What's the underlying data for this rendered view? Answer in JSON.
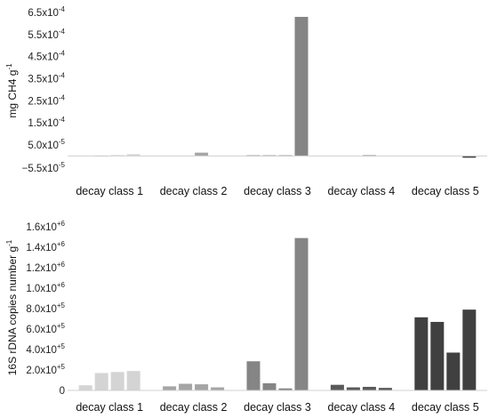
{
  "chart_data": [
    {
      "type": "bar",
      "ylabel": "mg CH4 g",
      "ylabel_sup": "-1",
      "categories": [
        "decay class 1",
        "decay class 2",
        "decay class 3",
        "decay class 4",
        "decay class 5"
      ],
      "yticks": [
        {
          "value": -5.5e-05,
          "mant": "−5.5x10",
          "exp": "-5"
        },
        {
          "value": 5e-05,
          "mant": "5.0x10",
          "exp": "-5"
        },
        {
          "value": 0.00015,
          "mant": "1.5x10",
          "exp": "-4"
        },
        {
          "value": 0.00025,
          "mant": "2.5x10",
          "exp": "-4"
        },
        {
          "value": 0.00035,
          "mant": "3.5x10",
          "exp": "-4"
        },
        {
          "value": 0.00045,
          "mant": "4.5x10",
          "exp": "-4"
        },
        {
          "value": 0.00055,
          "mant": "5.5x10",
          "exp": "-4"
        },
        {
          "value": 0.00065,
          "mant": "6.5x10",
          "exp": "-4"
        }
      ],
      "ylim": [
        -5.5e-05,
        0.00065
      ],
      "groups": [
        {
          "values": [
            0,
            2e-06,
            4e-06,
            8e-06
          ],
          "color": "#d4d4d4"
        },
        {
          "values": [
            0,
            0,
            1.5e-05,
            0
          ],
          "color": "#a5a5a5"
        },
        {
          "values": [
            3e-06,
            3e-06,
            3e-06,
            0.00063
          ],
          "color": "#858585"
        },
        {
          "values": [
            0,
            0,
            3e-06,
            0
          ],
          "color": "#595959"
        },
        {
          "values": [
            0,
            0,
            0,
            -8e-06
          ],
          "color": "#404040"
        }
      ]
    },
    {
      "type": "bar",
      "ylabel": "16S rDNA copies number g",
      "ylabel_sup": "-1",
      "categories": [
        "decay class 1",
        "decay class 2",
        "decay class 3",
        "decay class 4",
        "decay class 5"
      ],
      "yticks": [
        {
          "value": 0,
          "mant": "0",
          "exp": ""
        },
        {
          "value": 200000,
          "mant": "2.0x10",
          "exp": "+5"
        },
        {
          "value": 400000,
          "mant": "4.0x10",
          "exp": "+5"
        },
        {
          "value": 600000,
          "mant": "6.0x10",
          "exp": "+5"
        },
        {
          "value": 800000,
          "mant": "8.0x10",
          "exp": "+5"
        },
        {
          "value": 1000000,
          "mant": "1.0x10",
          "exp": "+6"
        },
        {
          "value": 1200000,
          "mant": "1.2x10",
          "exp": "+6"
        },
        {
          "value": 1400000,
          "mant": "1.4x10",
          "exp": "+6"
        },
        {
          "value": 1600000,
          "mant": "1.6x10",
          "exp": "+6"
        }
      ],
      "ylim": [
        0,
        1600000
      ],
      "groups": [
        {
          "values": [
            50000,
            170000,
            180000,
            190000
          ],
          "color": "#d4d4d4"
        },
        {
          "values": [
            40000,
            65000,
            60000,
            30000
          ],
          "color": "#a5a5a5"
        },
        {
          "values": [
            285000,
            70000,
            20000,
            1490000
          ],
          "color": "#858585"
        },
        {
          "values": [
            55000,
            30000,
            35000,
            25000
          ],
          "color": "#595959"
        },
        {
          "values": [
            715000,
            670000,
            370000,
            790000
          ],
          "color": "#404040"
        }
      ]
    }
  ]
}
